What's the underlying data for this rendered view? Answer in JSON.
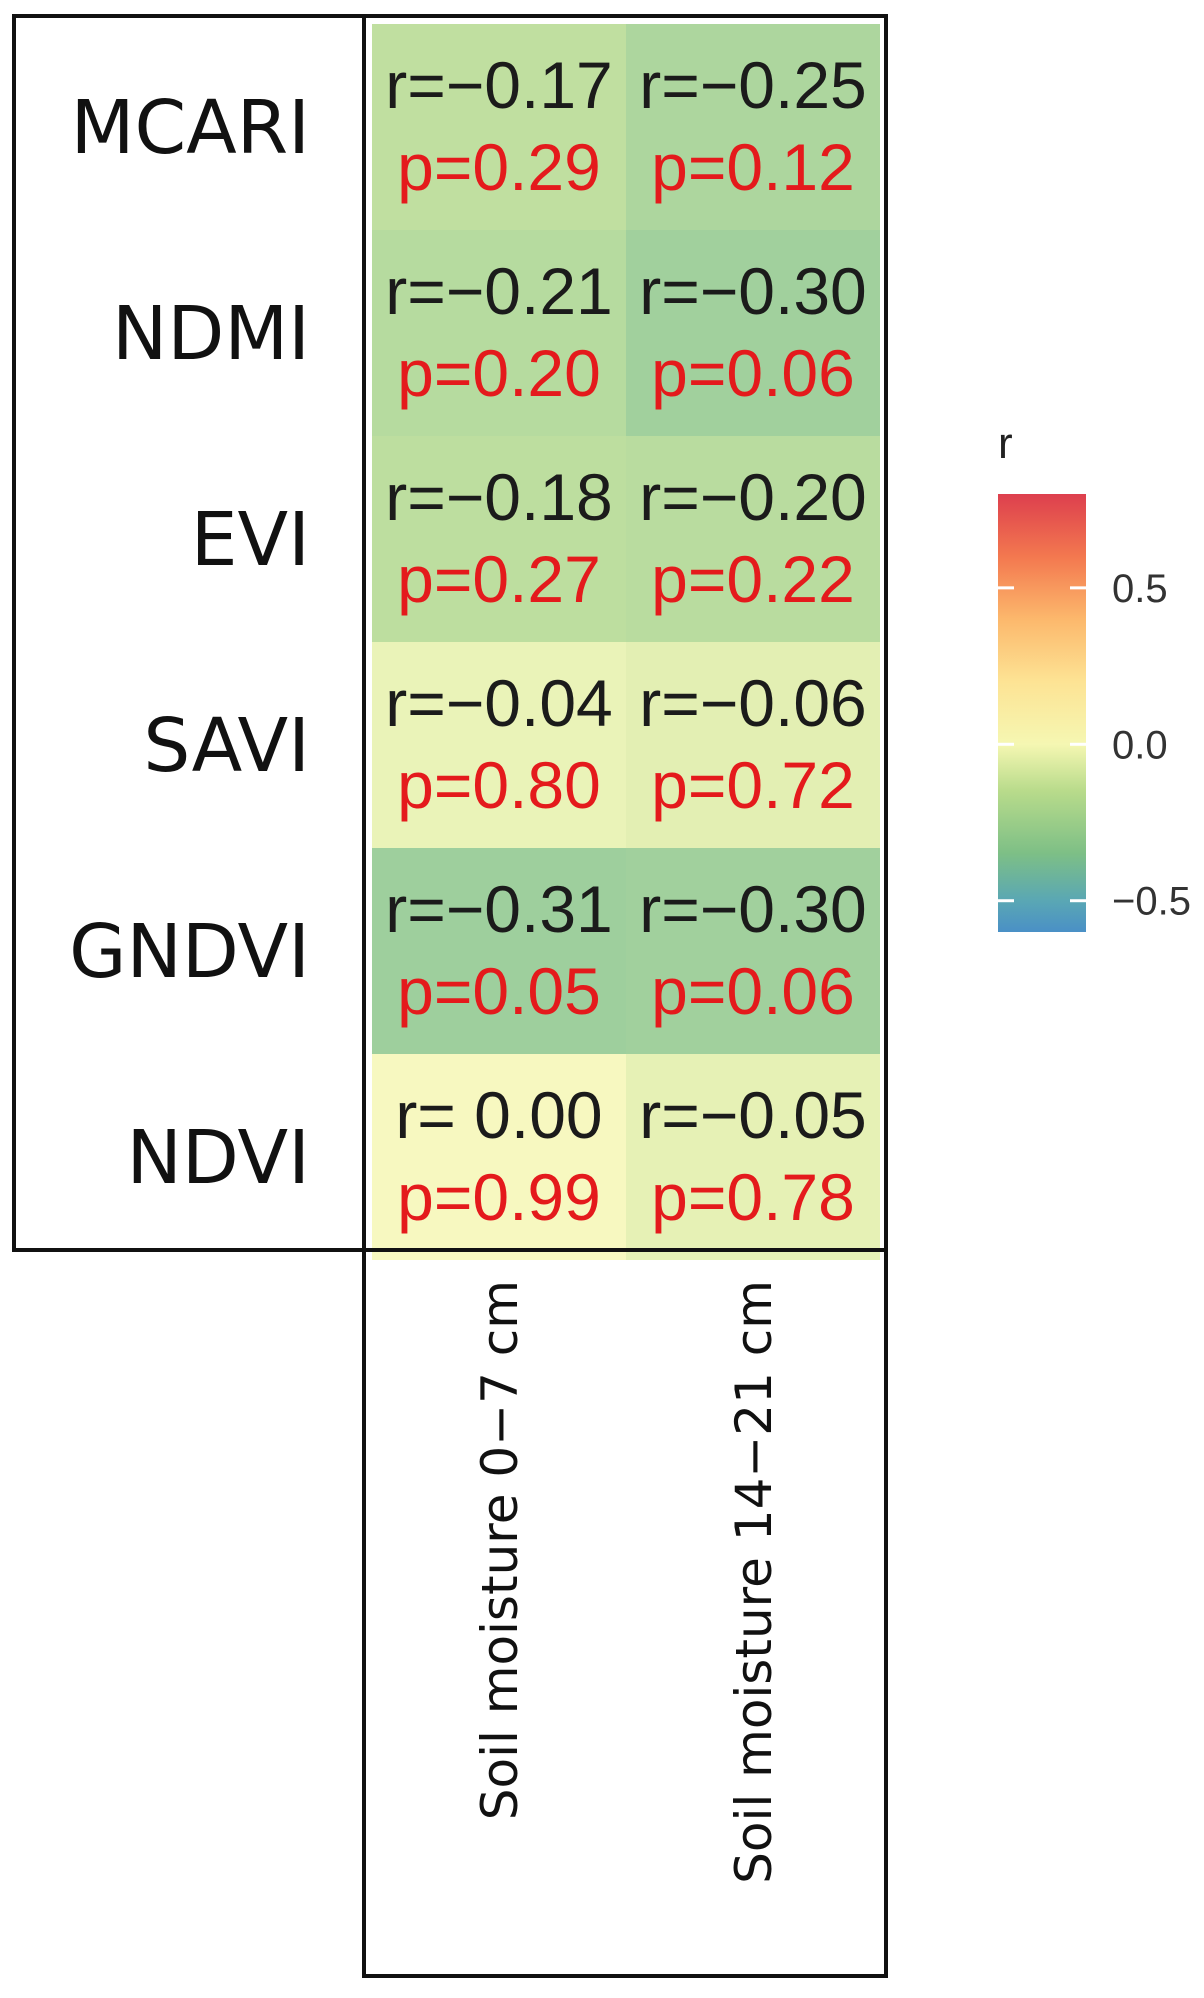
{
  "chart_data": {
    "type": "heatmap",
    "rows": [
      "MCARI",
      "NDMI",
      "EVI",
      "SAVI",
      "GNDVI",
      "NDVI"
    ],
    "columns": [
      "Soil moisture 0−7 cm",
      "Soil moisture 14−21 cm"
    ],
    "r_values": [
      [
        -0.17,
        -0.25
      ],
      [
        -0.21,
        -0.3
      ],
      [
        -0.18,
        -0.2
      ],
      [
        -0.04,
        -0.06
      ],
      [
        -0.31,
        -0.3
      ],
      [
        0.0,
        -0.05
      ]
    ],
    "r_labels": [
      [
        "r=−0.17",
        "r=−0.25"
      ],
      [
        "r=−0.21",
        "r=−0.30"
      ],
      [
        "r=−0.18",
        "r=−0.20"
      ],
      [
        "r=−0.04",
        "r=−0.06"
      ],
      [
        "r=−0.31",
        "r=−0.30"
      ],
      [
        "r= 0.00",
        "r=−0.05"
      ]
    ],
    "p_labels": [
      [
        "p=0.29",
        "p=0.12"
      ],
      [
        "p=0.20",
        "p=0.06"
      ],
      [
        "p=0.27",
        "p=0.22"
      ],
      [
        "p=0.80",
        "p=0.72"
      ],
      [
        "p=0.05",
        "p=0.06"
      ],
      [
        "p=0.99",
        "p=0.78"
      ]
    ],
    "legend": {
      "title": "r",
      "range": [
        -0.6,
        0.8
      ],
      "ticks": [
        {
          "value": 0.5,
          "label": "0.5"
        },
        {
          "value": 0.0,
          "label": "0.0"
        },
        {
          "value": -0.5,
          "label": "−0.5"
        }
      ],
      "colors": [
        {
          "value": -0.6,
          "color": "#4a90c6"
        },
        {
          "value": -0.5,
          "color": "#5aa7b4"
        },
        {
          "value": -0.35,
          "color": "#7dbf86"
        },
        {
          "value": -0.15,
          "color": "#b8db8b"
        },
        {
          "value": 0.0,
          "color": "#f5f7b2"
        },
        {
          "value": 0.2,
          "color": "#fde394"
        },
        {
          "value": 0.4,
          "color": "#fcb86c"
        },
        {
          "value": 0.6,
          "color": "#f3784f"
        },
        {
          "value": 0.8,
          "color": "#dd3f4e"
        }
      ],
      "placement": "right"
    },
    "p_color": "#e41a1c"
  }
}
